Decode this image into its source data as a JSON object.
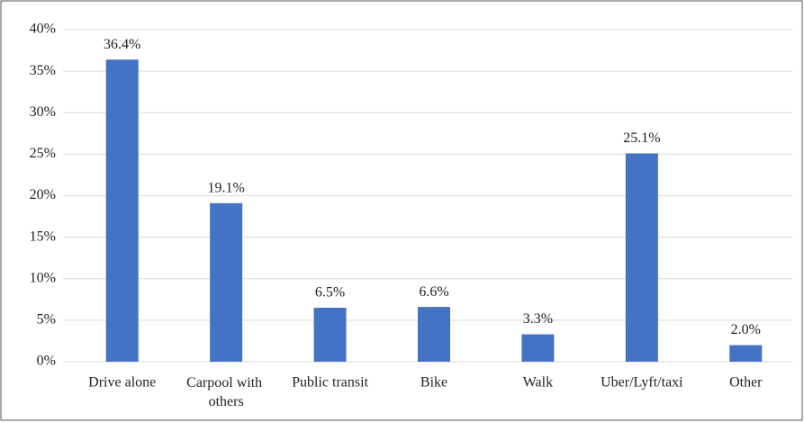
{
  "chart_data": {
    "type": "bar",
    "categories": [
      "Drive alone",
      "Carpool with others",
      "Public transit",
      "Bike",
      "Walk",
      "Uber/Lyft/taxi",
      "Other"
    ],
    "values": [
      36.4,
      19.1,
      6.5,
      6.6,
      3.3,
      25.1,
      2.0
    ],
    "value_labels": [
      "36.4%",
      "19.1%",
      "6.5%",
      "6.6%",
      "3.3%",
      "25.1%",
      "2.0%"
    ],
    "color": "#4472c4",
    "ylim": [
      0,
      40
    ],
    "yticks": [
      {
        "value": 0,
        "label": "0%"
      },
      {
        "value": 5,
        "label": "5%"
      },
      {
        "value": 10,
        "label": "10%"
      },
      {
        "value": 15,
        "label": "15%"
      },
      {
        "value": 20,
        "label": "20%"
      },
      {
        "value": 25,
        "label": "25%"
      },
      {
        "value": 30,
        "label": "30%"
      },
      {
        "value": 35,
        "label": "35%"
      },
      {
        "value": 40,
        "label": "40%"
      }
    ],
    "grid": true
  }
}
